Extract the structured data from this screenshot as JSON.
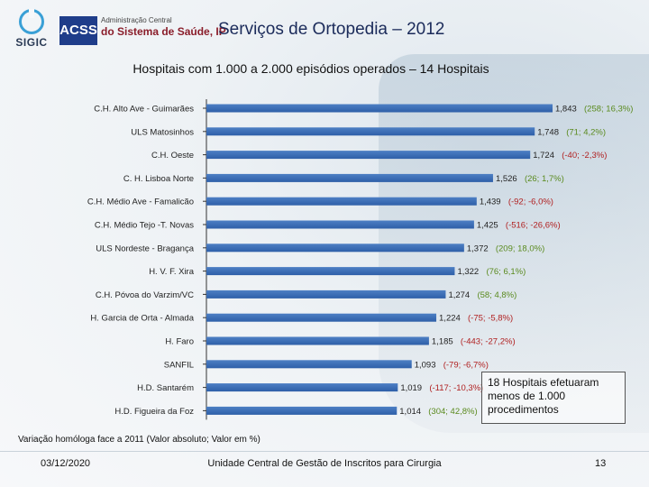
{
  "header": {
    "sigic_label": "SIGIC",
    "acss_box": "ACSS",
    "acss_line1": "Administração Central",
    "acss_line2": "do Sistema de Saúde, IP",
    "page_title": "Serviços de Ortopedia – 2012"
  },
  "chart_data": {
    "type": "bar",
    "orientation": "horizontal",
    "title": "Hospitais com 1.000 a 2.000 episódios operados – 14 Hospitais",
    "categories": [
      "C.H. Alto Ave - Guimarães",
      "ULS Matosinhos",
      "C.H. Oeste",
      "C. H. Lisboa Norte",
      "C.H. Médio Ave - Famalicão",
      "C.H. Médio Tejo -T. Novas",
      "ULS Nordeste - Bragança",
      "H. V. F. Xira",
      "C.H. Póvoa do Varzim/VC",
      "H. Garcia de Orta - Almada",
      "H. Faro",
      "SANFIL",
      "H.D. Santarém",
      "H.D. Figueira da Foz"
    ],
    "values": [
      1843,
      1748,
      1724,
      1526,
      1439,
      1425,
      1372,
      1322,
      1274,
      1224,
      1185,
      1093,
      1019,
      1014
    ],
    "value_labels": [
      "1,843",
      "1,748",
      "1,724",
      "1,526",
      "1,439",
      "1,425",
      "1,372",
      "1,322",
      "1,274",
      "1,224",
      "1,185",
      "1,093",
      "1,019",
      "1,014"
    ],
    "variation_labels": [
      "(258; 16,3%)",
      "(71; 4,2%)",
      "(-40; -2,3%)",
      "(26; 1,7%)",
      "(-92; -6,0%)",
      "(-516; -26,6%)",
      "(209; 18,0%)",
      "(76; 6,1%)",
      "(58; 4,8%)",
      "(-75; -5,8%)",
      "(-443; -27,2%)",
      "(-79; -6,7%)",
      "(-117; -10,3%)",
      "(304; 42,8%)"
    ],
    "variation_sign": [
      "pos",
      "pos",
      "neg",
      "pos",
      "neg",
      "neg",
      "pos",
      "pos",
      "pos",
      "neg",
      "neg",
      "neg",
      "neg",
      "pos"
    ],
    "xlim": [
      0,
      1843
    ],
    "grid": false,
    "legend": "none",
    "colors": {
      "bar": "#2e5fa8",
      "bar_light": "#4d7fc4",
      "positive": "#5a8a1e",
      "negative": "#b02020"
    }
  },
  "note": "18 Hospitais efetuaram menos de 1.000 procedimentos",
  "footnote": "Variação homóloga face a 2011 (Valor absoluto; Valor em %)",
  "footer": {
    "date": "03/12/2020",
    "organization": "Unidade Central de Gestão de Inscritos para Cirurgia",
    "page_number": "13"
  }
}
